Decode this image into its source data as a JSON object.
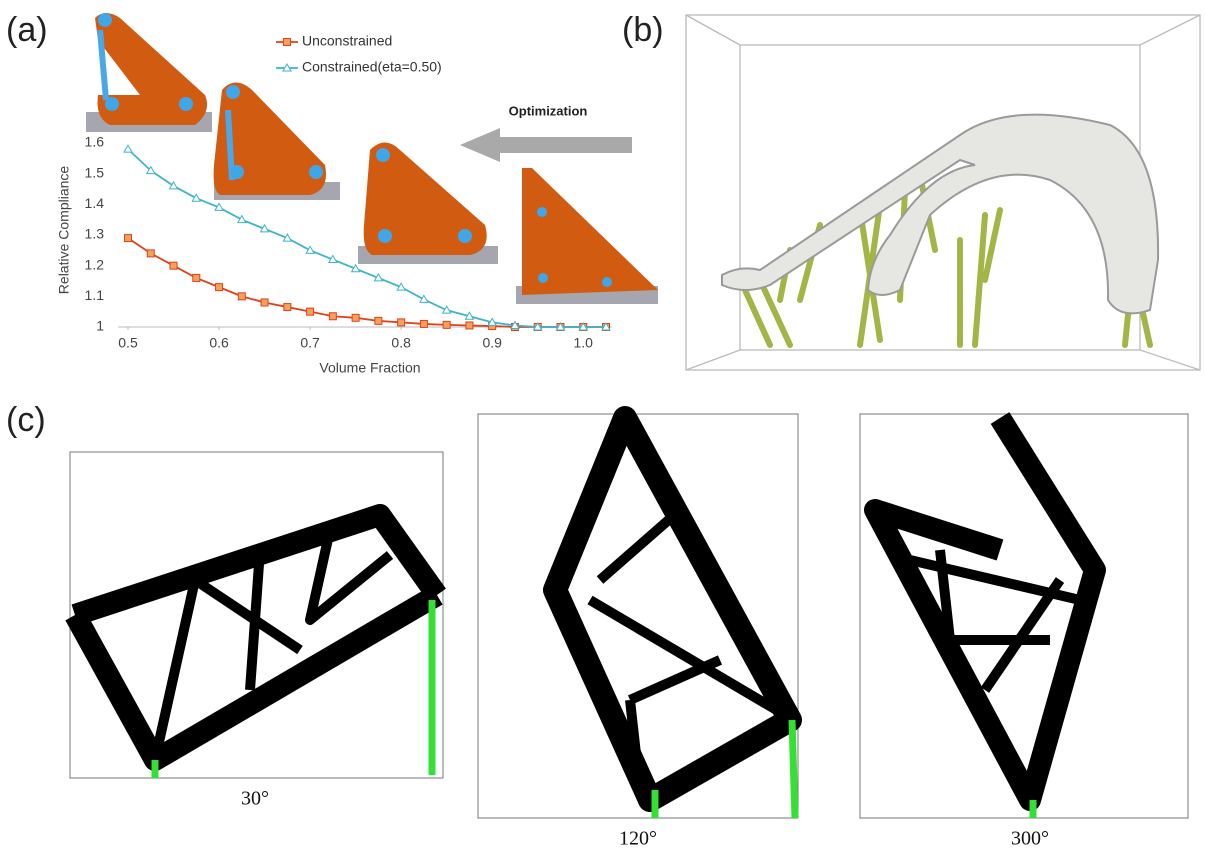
{
  "panel_labels": [
    "(a)",
    "(b)",
    "(c)"
  ],
  "chart_data": {
    "type": "line",
    "annotation": "Optimization",
    "xlabel": "Volume Fraction",
    "ylabel": "Relative Compliance",
    "x": [
      0.5,
      0.525,
      0.55,
      0.575,
      0.6,
      0.625,
      0.65,
      0.675,
      0.7,
      0.725,
      0.75,
      0.775,
      0.8,
      0.825,
      0.85,
      0.875,
      0.9,
      0.925,
      0.95,
      0.975,
      1.0,
      1.025
    ],
    "series": [
      {
        "name": "Unconstrained",
        "color": "#e0401a",
        "marker": "square",
        "values": [
          1.29,
          1.24,
          1.2,
          1.16,
          1.13,
          1.1,
          1.08,
          1.065,
          1.05,
          1.035,
          1.03,
          1.02,
          1.015,
          1.01,
          1.007,
          1.005,
          1.003,
          1,
          1,
          1,
          1,
          1
        ]
      },
      {
        "name": "Constrained(eta=0.50)",
        "color": "#3cb5cc",
        "marker": "triangle",
        "values": [
          1.58,
          1.51,
          1.46,
          1.42,
          1.39,
          1.35,
          1.32,
          1.29,
          1.25,
          1.22,
          1.19,
          1.16,
          1.13,
          1.09,
          1.055,
          1.035,
          1.015,
          1.005,
          1,
          1,
          1,
          1
        ]
      }
    ],
    "xlim": [
      0.5,
      1.025
    ],
    "ylim": [
      1,
      1.6
    ],
    "xticks": [
      0.5,
      0.6,
      0.7,
      0.8,
      0.9,
      {
        "value": 1,
        "label": "1.0"
      }
    ],
    "yticks": [
      1,
      1.1,
      1.2,
      1.3,
      1.4,
      1.5,
      1.6
    ],
    "grid": false
  },
  "angles": [
    "30°",
    "120°",
    "300°"
  ]
}
